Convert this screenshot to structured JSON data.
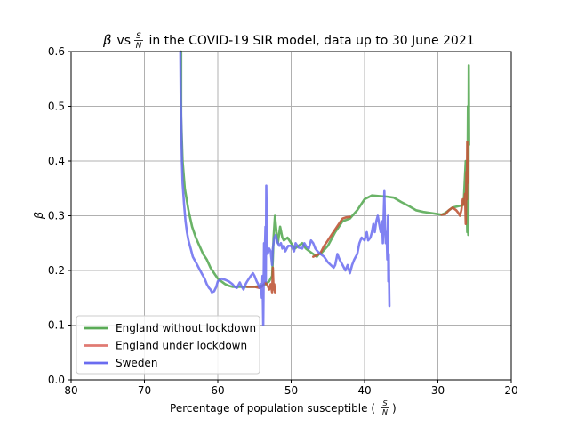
{
  "chart_data": {
    "type": "line",
    "title": {
      "beta_symbol": "β",
      "middle": " vs ",
      "frac_num": "S",
      "frac_den": "N",
      "rest": " in the COVID-19 SIR model, data up to 30 June 2021"
    },
    "xlabel": {
      "text": "Percentage of population susceptible (",
      "frac_num": "S",
      "frac_den": "N",
      "close": ")"
    },
    "ylabel": "β",
    "xlim": [
      80,
      20
    ],
    "ylim": [
      0.0,
      0.6
    ],
    "x_ticks": [
      "80",
      "70",
      "60",
      "50",
      "40",
      "30",
      "20"
    ],
    "y_ticks": [
      "0.0",
      "0.1",
      "0.2",
      "0.3",
      "0.4",
      "0.5",
      "0.6"
    ],
    "grid": true,
    "legend_position": "lower-left",
    "series": [
      {
        "name": "England without lockdown",
        "color": "#5aab56",
        "points": [
          [
            65.0,
            0.6
          ],
          [
            65.0,
            0.48
          ],
          [
            64.8,
            0.4
          ],
          [
            64.5,
            0.35
          ],
          [
            64.0,
            0.31
          ],
          [
            63.5,
            0.28
          ],
          [
            63.0,
            0.26
          ],
          [
            62.5,
            0.245
          ],
          [
            62.0,
            0.23
          ],
          [
            61.5,
            0.22
          ],
          [
            61.0,
            0.205
          ],
          [
            60.5,
            0.195
          ],
          [
            60.0,
            0.185
          ],
          [
            59.5,
            0.18
          ],
          [
            59.0,
            0.175
          ],
          [
            58.5,
            0.172
          ],
          [
            58.0,
            0.17
          ],
          [
            57.0,
            0.17
          ],
          [
            56.0,
            0.17
          ],
          [
            55.0,
            0.17
          ],
          [
            54.0,
            0.172
          ],
          [
            53.5,
            0.175
          ],
          [
            53.0,
            0.18
          ],
          [
            52.6,
            0.19
          ],
          [
            52.5,
            0.22
          ],
          [
            52.4,
            0.26
          ],
          [
            52.2,
            0.3
          ],
          [
            52.0,
            0.27
          ],
          [
            51.8,
            0.25
          ],
          [
            51.5,
            0.28
          ],
          [
            51.2,
            0.26
          ],
          [
            51.0,
            0.255
          ],
          [
            50.5,
            0.26
          ],
          [
            50.0,
            0.25
          ],
          [
            49.5,
            0.24
          ],
          [
            49.0,
            0.245
          ],
          [
            48.5,
            0.25
          ],
          [
            48.0,
            0.24
          ],
          [
            47.5,
            0.235
          ],
          [
            47.0,
            0.23
          ],
          [
            46.5,
            0.225
          ],
          [
            46.2,
            0.23
          ],
          [
            46.0,
            0.23
          ],
          [
            45.0,
            0.245
          ],
          [
            44.0,
            0.27
          ],
          [
            43.0,
            0.29
          ],
          [
            42.0,
            0.295
          ],
          [
            41.0,
            0.31
          ],
          [
            40.0,
            0.33
          ],
          [
            39.0,
            0.337
          ],
          [
            38.0,
            0.336
          ],
          [
            37.0,
            0.335
          ],
          [
            36.0,
            0.333
          ],
          [
            35.0,
            0.325
          ],
          [
            34.0,
            0.318
          ],
          [
            33.0,
            0.31
          ],
          [
            32.0,
            0.307
          ],
          [
            31.0,
            0.305
          ],
          [
            30.0,
            0.303
          ],
          [
            29.5,
            0.302
          ],
          [
            29.0,
            0.305
          ],
          [
            28.0,
            0.315
          ],
          [
            27.0,
            0.318
          ],
          [
            26.5,
            0.32
          ],
          [
            26.2,
            0.4
          ],
          [
            26.0,
            0.27
          ],
          [
            25.9,
            0.5
          ],
          [
            25.85,
            0.265
          ],
          [
            25.8,
            0.575
          ],
          [
            25.75,
            0.43
          ]
        ]
      },
      {
        "name": "England under lockdown",
        "color": "#c0583a",
        "points": [
          [
            56.0,
            0.17
          ],
          [
            55.0,
            0.17
          ],
          [
            54.3,
            0.168
          ],
          [
            54.0,
            0.17
          ],
          [
            53.5,
            0.178
          ],
          [
            53.2,
            0.172
          ],
          [
            53.0,
            0.165
          ],
          [
            52.8,
            0.175
          ],
          [
            52.6,
            0.16
          ],
          [
            52.5,
            0.205
          ],
          [
            52.4,
            0.165
          ],
          [
            52.3,
            0.175
          ],
          [
            52.2,
            0.16
          ]
        ]
      },
      {
        "name": "England under lockdown",
        "color": "#c0583a",
        "points": [
          [
            47.0,
            0.225
          ],
          [
            46.5,
            0.228
          ],
          [
            46.0,
            0.232
          ],
          [
            45.5,
            0.245
          ],
          [
            45.0,
            0.255
          ],
          [
            44.5,
            0.265
          ],
          [
            44.0,
            0.275
          ],
          [
            43.5,
            0.285
          ],
          [
            43.0,
            0.295
          ],
          [
            42.5,
            0.297
          ],
          [
            42.0,
            0.298
          ]
        ]
      },
      {
        "name": "England under lockdown",
        "color": "#c0583a",
        "points": [
          [
            29.5,
            0.302
          ],
          [
            29.0,
            0.303
          ],
          [
            28.5,
            0.31
          ],
          [
            28.0,
            0.315
          ],
          [
            27.5,
            0.31
          ],
          [
            27.2,
            0.305
          ],
          [
            27.0,
            0.3
          ],
          [
            26.8,
            0.31
          ],
          [
            26.6,
            0.33
          ],
          [
            26.4,
            0.32
          ],
          [
            26.3,
            0.34
          ],
          [
            26.2,
            0.285
          ],
          [
            26.1,
            0.38
          ],
          [
            26.05,
            0.33
          ],
          [
            26.0,
            0.435
          ],
          [
            25.95,
            0.36
          ]
        ]
      },
      {
        "name": "Sweden",
        "color": "#6a6cf0",
        "points": [
          [
            65.1,
            0.6
          ],
          [
            65.05,
            0.52
          ],
          [
            65.0,
            0.48
          ],
          [
            64.9,
            0.4
          ],
          [
            64.8,
            0.36
          ],
          [
            64.6,
            0.32
          ],
          [
            64.4,
            0.29
          ],
          [
            64.2,
            0.27
          ],
          [
            64.0,
            0.255
          ],
          [
            63.7,
            0.24
          ],
          [
            63.4,
            0.225
          ],
          [
            63.0,
            0.215
          ],
          [
            62.6,
            0.205
          ],
          [
            62.2,
            0.195
          ],
          [
            61.8,
            0.185
          ],
          [
            61.5,
            0.175
          ],
          [
            61.2,
            0.168
          ],
          [
            61.0,
            0.165
          ],
          [
            60.8,
            0.16
          ],
          [
            60.5,
            0.162
          ],
          [
            60.2,
            0.17
          ],
          [
            60.0,
            0.18
          ],
          [
            59.5,
            0.185
          ],
          [
            59.0,
            0.183
          ],
          [
            58.5,
            0.18
          ],
          [
            58.0,
            0.175
          ],
          [
            57.7,
            0.17
          ],
          [
            57.4,
            0.168
          ],
          [
            57.0,
            0.178
          ],
          [
            56.8,
            0.172
          ],
          [
            56.5,
            0.165
          ],
          [
            56.2,
            0.175
          ],
          [
            56.0,
            0.18
          ],
          [
            55.5,
            0.19
          ],
          [
            55.2,
            0.195
          ],
          [
            55.0,
            0.19
          ],
          [
            54.7,
            0.18
          ],
          [
            54.5,
            0.175
          ],
          [
            54.3,
            0.168
          ],
          [
            54.1,
            0.175
          ],
          [
            54.0,
            0.15
          ],
          [
            53.9,
            0.19
          ],
          [
            53.8,
            0.1
          ],
          [
            53.7,
            0.25
          ],
          [
            53.6,
            0.23
          ],
          [
            53.5,
            0.28
          ],
          [
            53.45,
            0.18
          ],
          [
            53.4,
            0.355
          ],
          [
            53.3,
            0.26
          ],
          [
            53.2,
            0.23
          ],
          [
            53.0,
            0.24
          ],
          [
            52.8,
            0.235
          ],
          [
            52.6,
            0.21
          ],
          [
            52.5,
            0.24
          ],
          [
            52.3,
            0.26
          ],
          [
            52.1,
            0.265
          ],
          [
            52.0,
            0.258
          ],
          [
            51.8,
            0.25
          ],
          [
            51.6,
            0.245
          ],
          [
            51.4,
            0.25
          ],
          [
            51.2,
            0.24
          ],
          [
            51.0,
            0.245
          ],
          [
            50.8,
            0.235
          ],
          [
            50.6,
            0.24
          ],
          [
            50.4,
            0.245
          ],
          [
            50.0,
            0.245
          ],
          [
            49.6,
            0.235
          ],
          [
            49.4,
            0.25
          ],
          [
            49.0,
            0.242
          ],
          [
            48.5,
            0.24
          ],
          [
            48.2,
            0.25
          ],
          [
            48.0,
            0.245
          ],
          [
            47.6,
            0.24
          ],
          [
            47.3,
            0.255
          ],
          [
            47.0,
            0.25
          ],
          [
            46.7,
            0.24
          ],
          [
            46.4,
            0.235
          ],
          [
            46.0,
            0.23
          ],
          [
            45.5,
            0.225
          ],
          [
            45.0,
            0.215
          ],
          [
            44.6,
            0.21
          ],
          [
            44.2,
            0.205
          ],
          [
            44.0,
            0.21
          ],
          [
            43.7,
            0.23
          ],
          [
            43.4,
            0.22
          ],
          [
            43.0,
            0.21
          ],
          [
            42.6,
            0.2
          ],
          [
            42.3,
            0.21
          ],
          [
            42.0,
            0.195
          ],
          [
            41.7,
            0.21
          ],
          [
            41.4,
            0.22
          ],
          [
            41.0,
            0.23
          ],
          [
            40.7,
            0.25
          ],
          [
            40.4,
            0.26
          ],
          [
            40.0,
            0.255
          ],
          [
            39.7,
            0.27
          ],
          [
            39.5,
            0.255
          ],
          [
            39.2,
            0.26
          ],
          [
            39.0,
            0.27
          ],
          [
            38.8,
            0.285
          ],
          [
            38.6,
            0.27
          ],
          [
            38.4,
            0.29
          ],
          [
            38.2,
            0.3
          ],
          [
            38.0,
            0.285
          ],
          [
            37.8,
            0.27
          ],
          [
            37.6,
            0.29
          ],
          [
            37.5,
            0.25
          ],
          [
            37.4,
            0.3
          ],
          [
            37.3,
            0.345
          ],
          [
            37.2,
            0.28
          ],
          [
            37.1,
            0.25
          ],
          [
            37.0,
            0.27
          ],
          [
            36.9,
            0.22
          ],
          [
            36.8,
            0.3
          ],
          [
            36.75,
            0.18
          ],
          [
            36.7,
            0.23
          ],
          [
            36.6,
            0.135
          ]
        ]
      }
    ],
    "legend": [
      {
        "label": "England without lockdown",
        "color": "#5aab56"
      },
      {
        "label": "England under lockdown",
        "color": "#e07a72"
      },
      {
        "label": "Sweden",
        "color": "#6a6cf0"
      }
    ]
  }
}
